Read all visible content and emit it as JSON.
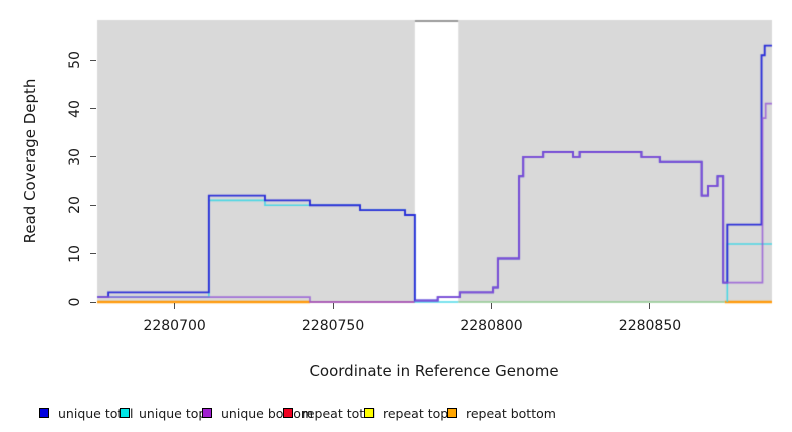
{
  "chart_data": {
    "type": "line",
    "style": "step-post",
    "title": "",
    "xlabel": "Coordinate in Reference Genome",
    "ylabel": "Read Coverage Depth",
    "xlim": [
      2280675.5,
      2280888.5
    ],
    "ylim": [
      0,
      58.3
    ],
    "xticks": [
      2280700,
      2280750,
      2280800,
      2280850
    ],
    "xtick_labels": [
      "2280700",
      "2280750",
      "2280800",
      "2280850"
    ],
    "yticks": [
      0,
      10,
      20,
      30,
      40,
      50
    ],
    "ytick_labels": [
      "0",
      "10",
      "20",
      "30",
      "40",
      "50"
    ],
    "grid": false,
    "plot_background_color": "#d9d9d9",
    "background_regions": [
      {
        "x_start": 2280675.5,
        "x_end": 2280775.8,
        "color": "#d9d9d9"
      },
      {
        "x_start": 2280789.5,
        "x_end": 2280888.5,
        "color": "#d9d9d9"
      }
    ],
    "gap_region": {
      "x_start": 2280775.8,
      "x_end": 2280789.5,
      "top_bar_color": "#9a9a9a"
    },
    "series": [
      {
        "name": "repeat total",
        "render_color": "#c9476b",
        "line_width": 1.6,
        "segments": [
          [
            [
              2280675.5,
              0
            ],
            [
              2280775.8,
              0
            ]
          ]
        ]
      },
      {
        "name": "repeat bottom",
        "render_color": "#ff9a0d",
        "line_width": 2.4,
        "segments": [
          [
            [
              2280675.5,
              0
            ],
            [
              2280742.7,
              0
            ]
          ],
          [
            [
              2280873.6,
              0
            ],
            [
              2280888.5,
              0
            ]
          ]
        ]
      },
      {
        "name": "repeat top",
        "render_color": "#90c890",
        "line_width": 1.6,
        "segments": [
          [
            [
              2280789.5,
              0
            ],
            [
              2280873.6,
              0
            ]
          ]
        ]
      },
      {
        "name": "unique top",
        "render_color": "rgba(70,215,230,0.95)",
        "line_width": 1.6,
        "segments": [
          [
            [
              2280675.5,
              1
            ],
            [
              2280710.8,
              1
            ],
            [
              2280710.8,
              21
            ],
            [
              2280728.5,
              21
            ],
            [
              2280728.5,
              20
            ],
            [
              2280758.5,
              20
            ],
            [
              2280758.5,
              19
            ],
            [
              2280772.7,
              19
            ],
            [
              2280772.7,
              18
            ],
            [
              2280775.8,
              18
            ],
            [
              2280775.8,
              0
            ],
            [
              2280789.5,
              0
            ]
          ],
          [
            [
              2280874.4,
              0
            ],
            [
              2280874.4,
              12
            ],
            [
              2280888.5,
              12
            ]
          ]
        ]
      },
      {
        "name": "unique total",
        "render_color": "#2b2fd8",
        "line_width": 1.9,
        "segments": [
          [
            [
              2280675.5,
              1
            ],
            [
              2280679,
              1
            ],
            [
              2280679,
              2
            ],
            [
              2280710.8,
              2
            ],
            [
              2280710.8,
              22
            ],
            [
              2280728.5,
              22
            ],
            [
              2280728.5,
              21
            ],
            [
              2280742.7,
              21
            ],
            [
              2280742.7,
              20
            ],
            [
              2280758.5,
              20
            ],
            [
              2280758.5,
              19
            ],
            [
              2280772.7,
              19
            ],
            [
              2280772.7,
              18
            ],
            [
              2280775.8,
              18
            ],
            [
              2280775.8,
              0.3
            ],
            [
              2280783,
              0.3
            ],
            [
              2280783,
              1
            ],
            [
              2280790,
              1
            ],
            [
              2280790,
              2
            ],
            [
              2280800.5,
              2
            ],
            [
              2280800.5,
              3
            ],
            [
              2280802,
              3
            ],
            [
              2280802,
              9
            ],
            [
              2280808.7,
              9
            ],
            [
              2280808.7,
              26
            ],
            [
              2280810,
              26
            ],
            [
              2280810,
              30
            ],
            [
              2280816.3,
              30
            ],
            [
              2280816.3,
              31
            ],
            [
              2280825.7,
              31
            ],
            [
              2280825.7,
              30
            ],
            [
              2280827.8,
              30
            ],
            [
              2280827.8,
              31
            ],
            [
              2280847.3,
              31
            ],
            [
              2280847.3,
              30
            ],
            [
              2280853.1,
              30
            ],
            [
              2280853.1,
              29
            ],
            [
              2280866.3,
              29
            ],
            [
              2280866.3,
              22
            ],
            [
              2280868.3,
              22
            ],
            [
              2280868.3,
              24
            ],
            [
              2280871.3,
              24
            ],
            [
              2280871.3,
              26
            ],
            [
              2280873.1,
              26
            ],
            [
              2280873.1,
              4
            ],
            [
              2280874.4,
              4
            ],
            [
              2280874.4,
              16
            ],
            [
              2280885.2,
              16
            ],
            [
              2280885.2,
              51
            ],
            [
              2280886.2,
              51
            ],
            [
              2280886.2,
              53
            ],
            [
              2280888.5,
              53
            ]
          ]
        ]
      },
      {
        "name": "unique bottom",
        "render_color": "rgba(148,86,214,0.8)",
        "line_width": 1.7,
        "segments": [
          [
            [
              2280675.5,
              1
            ],
            [
              2280742.7,
              1
            ],
            [
              2280742.7,
              0
            ],
            [
              2280775.8,
              0
            ]
          ],
          [
            [
              2280775.8,
              0.3
            ],
            [
              2280783,
              0.3
            ],
            [
              2280783,
              1
            ],
            [
              2280790,
              1
            ],
            [
              2280790,
              2
            ],
            [
              2280800.5,
              2
            ],
            [
              2280800.5,
              3
            ],
            [
              2280802,
              3
            ],
            [
              2280802,
              9
            ],
            [
              2280808.7,
              9
            ],
            [
              2280808.7,
              26
            ],
            [
              2280810,
              26
            ],
            [
              2280810,
              30
            ],
            [
              2280816.3,
              30
            ],
            [
              2280816.3,
              31
            ],
            [
              2280825.7,
              31
            ],
            [
              2280825.7,
              30
            ],
            [
              2280827.8,
              30
            ],
            [
              2280827.8,
              31
            ],
            [
              2280847.3,
              31
            ],
            [
              2280847.3,
              30
            ],
            [
              2280853.1,
              30
            ],
            [
              2280853.1,
              29
            ],
            [
              2280866.3,
              29
            ],
            [
              2280866.3,
              22
            ],
            [
              2280868.3,
              22
            ],
            [
              2280868.3,
              24
            ],
            [
              2280871.3,
              24
            ],
            [
              2280871.3,
              26
            ],
            [
              2280873.1,
              26
            ],
            [
              2280873.1,
              4
            ],
            [
              2280885.5,
              4
            ],
            [
              2280885.5,
              38
            ],
            [
              2280886.5,
              38
            ],
            [
              2280886.5,
              41
            ],
            [
              2280888.5,
              41
            ]
          ]
        ]
      }
    ]
  },
  "legend": {
    "items": [
      {
        "label": "unique total",
        "color": "#0000e0"
      },
      {
        "label": "unique top",
        "color": "#00e5e5"
      },
      {
        "label": "unique bottom",
        "color": "#a020d0"
      },
      {
        "label": "repeat total",
        "color": "#f00020"
      },
      {
        "label": "repeat top",
        "color": "#ffff00"
      },
      {
        "label": "repeat bottom",
        "color": "#ffa500"
      }
    ]
  }
}
